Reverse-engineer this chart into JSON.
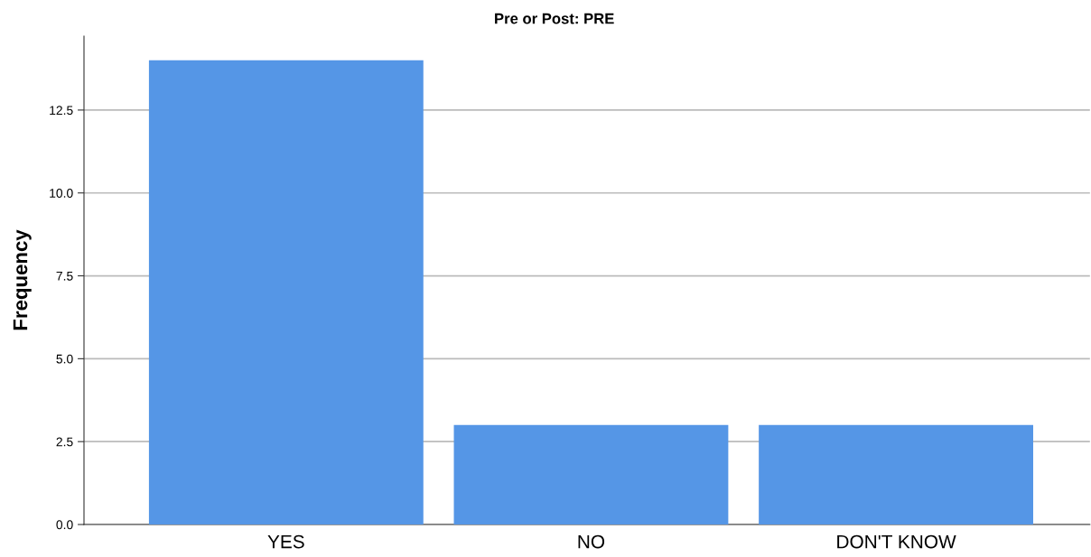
{
  "chart_data": {
    "type": "bar",
    "title": "Pre or Post: PRE",
    "ylabel": "Frequency",
    "categories": [
      "YES",
      "NO",
      "DON'T KNOW"
    ],
    "values": [
      14,
      3,
      3
    ],
    "color": "#5596e6",
    "ylim": [
      0,
      14.73
    ],
    "yticks": [
      {
        "value": 0,
        "label": "0.0"
      },
      {
        "value": 2.5,
        "label": "2.5"
      },
      {
        "value": 5,
        "label": "5.0"
      },
      {
        "value": 7.5,
        "label": "7.5"
      },
      {
        "value": 10,
        "label": "10.0"
      },
      {
        "value": 12.5,
        "label": "12.5"
      }
    ],
    "grid": "y",
    "legend": false
  }
}
